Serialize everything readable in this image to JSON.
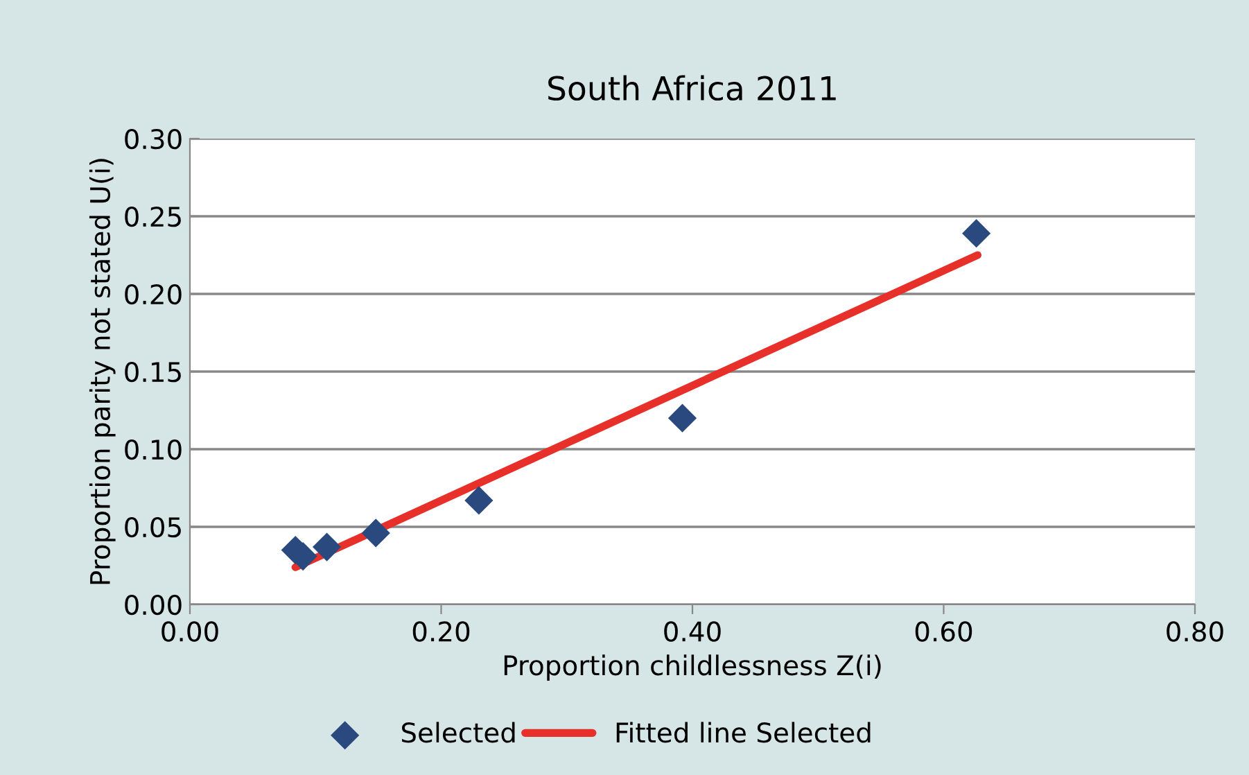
{
  "chart_data": {
    "type": "scatter",
    "title": "South Africa 2011",
    "xlabel": "Proportion childlessness Z(i)",
    "ylabel": "Proportion parity not stated U(i)",
    "series": [
      {
        "name": "Selected",
        "color": "#2a4a7f",
        "marker": "diamond",
        "x": [
          0.084,
          0.09,
          0.109,
          0.148,
          0.23,
          0.392,
          0.626
        ],
        "values": [
          0.035,
          0.031,
          0.037,
          0.046,
          0.067,
          0.12,
          0.239
        ]
      },
      {
        "name": "Fitted line Selected",
        "type": "line",
        "color": "#e8302a",
        "marker": "none",
        "line_style": "solid",
        "x": [
          0.084,
          0.627
        ],
        "values": [
          0.024,
          0.225
        ]
      }
    ],
    "xlim": [
      0,
      0.8
    ],
    "xticks": [
      {
        "value": 0,
        "label": "0.00"
      },
      {
        "value": 0.2,
        "label": "0.20"
      },
      {
        "value": 0.4,
        "label": "0.40"
      },
      {
        "value": 0.6,
        "label": "0.60"
      },
      {
        "value": 0.8,
        "label": "0.80"
      }
    ],
    "ylim": [
      0,
      0.3
    ],
    "yticks": [
      {
        "value": 0,
        "label": "0.00"
      },
      {
        "value": 0.05,
        "label": "0.05"
      },
      {
        "value": 0.1,
        "label": "0.10"
      },
      {
        "value": 0.15,
        "label": "0.15"
      },
      {
        "value": 0.2,
        "label": "0.20"
      },
      {
        "value": 0.25,
        "label": "0.25"
      },
      {
        "value": 0.3,
        "label": "0.30"
      }
    ],
    "grid": "y",
    "legend": "bottom"
  }
}
